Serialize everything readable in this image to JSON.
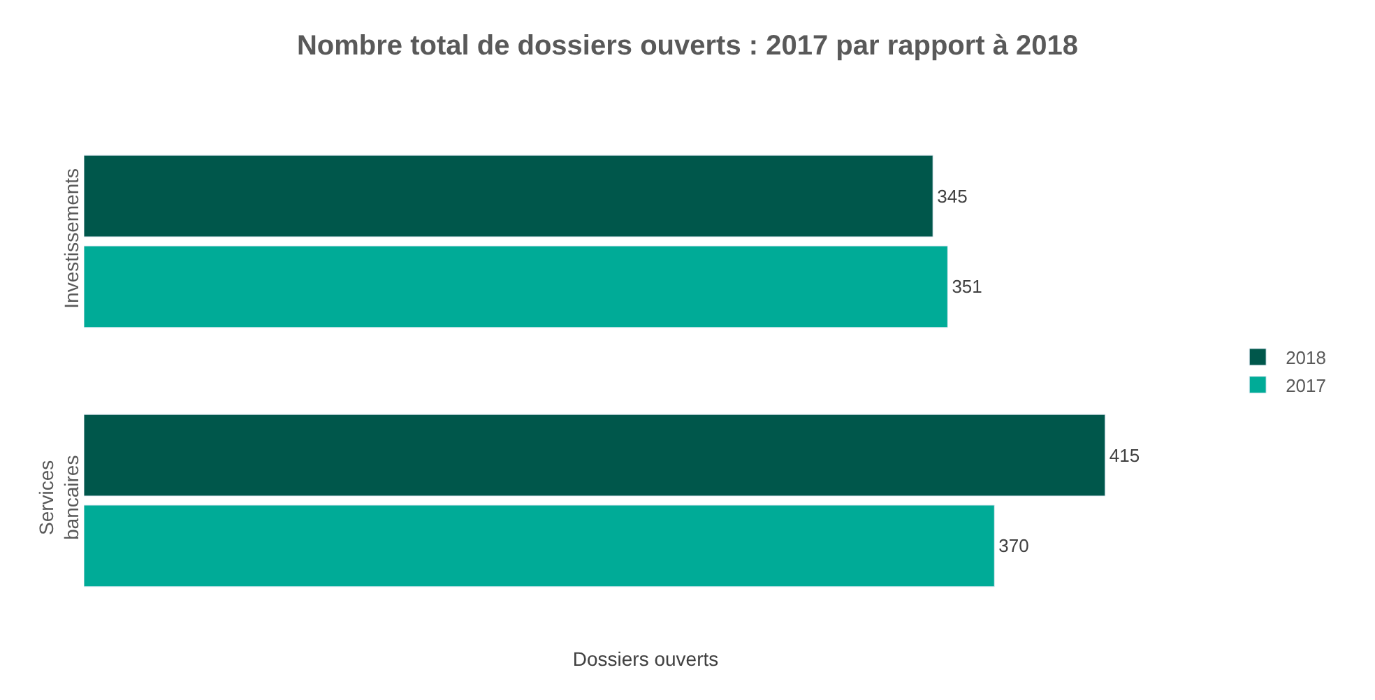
{
  "chart_data": {
    "type": "bar",
    "orientation": "horizontal",
    "title": "Nombre total de dossiers ouverts : 2017 par rapport à 2018",
    "xlabel": "Dossiers ouverts",
    "categories": [
      "Investissements",
      "Services bancaires"
    ],
    "series": [
      {
        "name": "2018",
        "color": "#00574b",
        "values": [
          345,
          415
        ]
      },
      {
        "name": "2017",
        "color": "#00ab97",
        "values": [
          351,
          370
        ]
      }
    ],
    "data_labels": true,
    "legend": "right"
  }
}
